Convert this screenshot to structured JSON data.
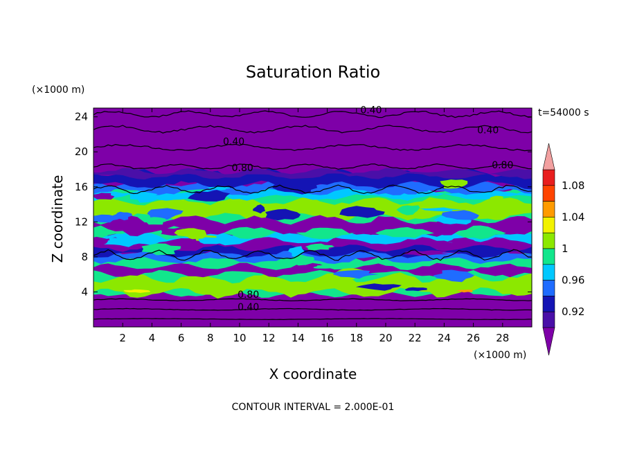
{
  "colors": {
    "purple": "#7e00a8",
    "indigo": "#4a0fa8",
    "navy": "#1414b4",
    "blue": "#1f6cff",
    "cyan": "#00c8ff",
    "green": "#12e68c",
    "lime": "#8ce800",
    "yellow": "#f2f200",
    "orange": "#ff9b00",
    "red": "#ff4400",
    "crimson": "#e81e1e",
    "pink": "#f2a0a0"
  },
  "chart_data": {
    "type": "heatmap",
    "title": "Saturation Ratio",
    "xlabel": "X coordinate",
    "ylabel": "Z coordinate",
    "x_unit": "(×1000 m)",
    "y_unit": "(×1000 m)",
    "time_label": "t=54000 s",
    "footer": "CONTOUR INTERVAL = 2.000E-01",
    "xlim": [
      0,
      30
    ],
    "ylim": [
      0,
      25
    ],
    "x_ticks": [
      "2",
      "4",
      "6",
      "8",
      "10",
      "12",
      "14",
      "16",
      "18",
      "20",
      "22",
      "24",
      "26",
      "28"
    ],
    "y_ticks": [
      "4",
      "8",
      "12",
      "16",
      "20",
      "24"
    ],
    "colorbar": {
      "min": 0.9,
      "max": 1.1,
      "step": 0.02,
      "tick_values": [
        0.92,
        0.96,
        1.0,
        1.04,
        1.08
      ],
      "tick_labels": [
        "0.92",
        "0.96",
        "1",
        "1.04",
        "1.08"
      ],
      "extend_low_color": "purple",
      "extend_high_color": "pink",
      "band_colors": [
        "indigo",
        "navy",
        "blue",
        "cyan",
        "green",
        "lime",
        "yellow",
        "orange",
        "red",
        "crimson"
      ]
    },
    "contour_labels": [
      {
        "text": "0.40",
        "x": 19.0,
        "z": 24.8
      },
      {
        "text": "0.40",
        "x": 27.0,
        "z": 22.5
      },
      {
        "text": "0.40",
        "x": 9.6,
        "z": 21.2
      },
      {
        "text": "0.80",
        "x": 10.2,
        "z": 18.2
      },
      {
        "text": "0.80",
        "x": 28.0,
        "z": 18.5
      },
      {
        "text": "0.80",
        "x": 10.6,
        "z": 3.7
      },
      {
        "text": "0.40",
        "x": 10.6,
        "z": 2.3
      }
    ],
    "layers": [
      {
        "z_min": 0.0,
        "z_max": 3.8,
        "dominant_value": 0.4
      },
      {
        "z_min": 3.8,
        "z_max": 8.0,
        "dominant_value": 0.99
      },
      {
        "z_min": 8.0,
        "z_max": 10.5,
        "dominant_value": 0.85
      },
      {
        "z_min": 10.5,
        "z_max": 15.5,
        "dominant_value": 0.98
      },
      {
        "z_min": 15.5,
        "z_max": 17.5,
        "dominant_value": 0.94
      },
      {
        "z_min": 17.5,
        "z_max": 25.0,
        "dominant_value": 0.6
      }
    ]
  }
}
